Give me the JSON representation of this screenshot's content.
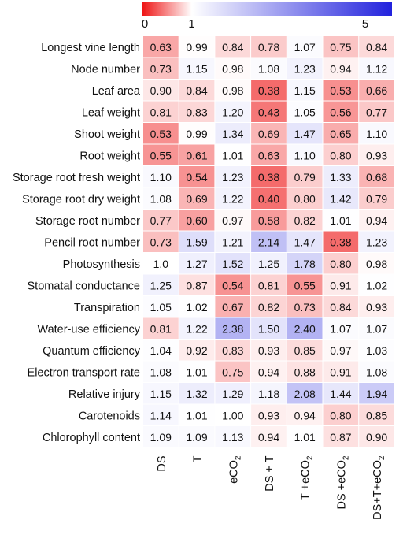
{
  "chart_data": {
    "type": "heatmap",
    "title": "",
    "legend": {
      "position": "top",
      "min": 0,
      "mid": 1,
      "max": 5,
      "ticks": [
        "0",
        "1",
        "5"
      ],
      "colors": {
        "low": "#ee1111",
        "mid": "#ffffff",
        "high": "#2222dd"
      }
    },
    "columns": [
      "DS",
      "T",
      "eCO",
      "DS + T",
      "T +eCO",
      "DS +eCO",
      "DS+T+eCO"
    ],
    "column_subscripts": [
      "",
      "",
      "2",
      "",
      "2",
      "2",
      "2"
    ],
    "rows": [
      {
        "label": "Longest vine length",
        "values": [
          0.63,
          0.99,
          0.84,
          0.78,
          1.07,
          0.75,
          0.84
        ]
      },
      {
        "label": "Node number",
        "values": [
          0.73,
          1.15,
          0.98,
          1.08,
          1.23,
          0.94,
          1.12
        ]
      },
      {
        "label": "Leaf area",
        "values": [
          0.9,
          0.84,
          0.98,
          0.38,
          1.15,
          0.53,
          0.66
        ]
      },
      {
        "label": "Leaf weight",
        "values": [
          0.81,
          0.83,
          1.2,
          0.43,
          1.05,
          0.56,
          0.77
        ]
      },
      {
        "label": "Shoot weight",
        "values": [
          0.53,
          0.99,
          1.34,
          0.69,
          1.47,
          0.65,
          1.1
        ]
      },
      {
        "label": "Root weight",
        "values": [
          0.55,
          0.61,
          1.01,
          0.63,
          1.1,
          0.8,
          0.93
        ]
      },
      {
        "label": "Storage root fresh weight",
        "values": [
          1.1,
          0.54,
          1.23,
          0.38,
          0.79,
          1.33,
          0.68
        ]
      },
      {
        "label": "Storage root dry weight",
        "values": [
          1.08,
          0.69,
          1.22,
          0.4,
          0.8,
          1.42,
          0.79
        ]
      },
      {
        "label": "Storage root number",
        "values": [
          0.77,
          0.6,
          0.97,
          0.58,
          0.82,
          1.01,
          0.94
        ]
      },
      {
        "label": "Pencil root number",
        "values": [
          0.73,
          1.59,
          1.21,
          2.14,
          1.47,
          0.38,
          1.23
        ]
      },
      {
        "label": "Photosynthesis",
        "values": [
          1.0,
          1.27,
          1.52,
          1.25,
          1.78,
          0.8,
          0.98
        ]
      },
      {
        "label": "Stomatal conductance",
        "values": [
          1.25,
          0.87,
          0.54,
          0.81,
          0.55,
          0.91,
          1.02
        ]
      },
      {
        "label": "Transpiration",
        "values": [
          1.05,
          1.02,
          0.67,
          0.82,
          0.73,
          0.84,
          0.93
        ]
      },
      {
        "label": "Water-use efficiency",
        "values": [
          0.81,
          1.22,
          2.38,
          1.5,
          2.4,
          1.07,
          1.07
        ]
      },
      {
        "label": "Quantum efficiency",
        "values": [
          1.04,
          0.92,
          0.83,
          0.93,
          0.85,
          0.97,
          1.03
        ]
      },
      {
        "label": "Electron transport rate",
        "values": [
          1.08,
          1.01,
          0.75,
          0.94,
          0.88,
          0.91,
          1.08
        ]
      },
      {
        "label": "Relative injury",
        "values": [
          1.15,
          1.32,
          1.29,
          1.18,
          2.08,
          1.44,
          1.94
        ]
      },
      {
        "label": "Carotenoids",
        "values": [
          1.14,
          1.01,
          1.0,
          0.93,
          0.94,
          0.8,
          0.85
        ]
      },
      {
        "label": "Chlorophyll content",
        "values": [
          1.09,
          1.09,
          1.13,
          0.94,
          1.01,
          0.87,
          0.9
        ]
      }
    ],
    "display_values": [
      [
        "0.63",
        "0.99",
        "0.84",
        "0.78",
        "1.07",
        "0.75",
        "0.84"
      ],
      [
        "0.73",
        "1.15",
        "0.98",
        "1.08",
        "1.23",
        "0.94",
        "1.12"
      ],
      [
        "0.90",
        "0.84",
        "0.98",
        "0.38",
        "1.15",
        "0.53",
        "0.66"
      ],
      [
        "0.81",
        "0.83",
        "1.20",
        "0.43",
        "1.05",
        "0.56",
        "0.77"
      ],
      [
        "0.53",
        "0.99",
        "1.34",
        "0.69",
        "1.47",
        "0.65",
        "1.10"
      ],
      [
        "0.55",
        "0.61",
        "1.01",
        "0.63",
        "1.10",
        "0.80",
        "0.93"
      ],
      [
        "1.10",
        "0.54",
        "1.23",
        "0.38",
        "0.79",
        "1.33",
        "0.68"
      ],
      [
        "1.08",
        "0.69",
        "1.22",
        "0.40",
        "0.80",
        "1.42",
        "0.79"
      ],
      [
        "0.77",
        "0.60",
        "0.97",
        "0.58",
        "0.82",
        "1.01",
        "0.94"
      ],
      [
        "0.73",
        "1.59",
        "1.21",
        "2.14",
        "1.47",
        "0.38",
        "1.23"
      ],
      [
        "1.0",
        "1.27",
        "1.52",
        "1.25",
        "1.78",
        "0.80",
        "0.98"
      ],
      [
        "1.25",
        "0.87",
        "0.54",
        "0.81",
        "0.55",
        "0.91",
        "1.02"
      ],
      [
        "1.05",
        "1.02",
        "0.67",
        "0.82",
        "0.73",
        "0.84",
        "0.93"
      ],
      [
        "0.81",
        "1.22",
        "2.38",
        "1.50",
        "2.40",
        "1.07",
        "1.07"
      ],
      [
        "1.04",
        "0.92",
        "0.83",
        "0.93",
        "0.85",
        "0.97",
        "1.03"
      ],
      [
        "1.08",
        "1.01",
        "0.75",
        "0.94",
        "0.88",
        "0.91",
        "1.08"
      ],
      [
        "1.15",
        "1.32",
        "1.29",
        "1.18",
        "2.08",
        "1.44",
        "1.94"
      ],
      [
        "1.14",
        "1.01",
        "1.00",
        "0.93",
        "0.94",
        "0.80",
        "0.85"
      ],
      [
        "1.09",
        "1.09",
        "1.13",
        "0.94",
        "1.01",
        "0.87",
        "0.90"
      ]
    ]
  }
}
